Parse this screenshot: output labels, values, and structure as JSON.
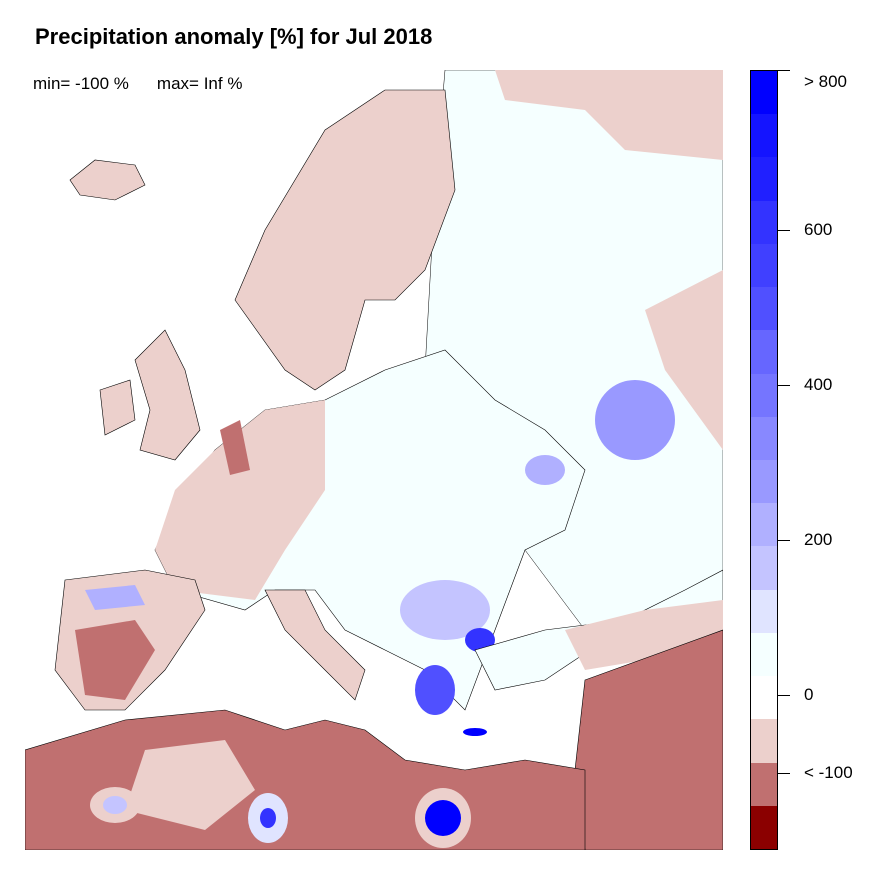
{
  "title": "Precipitation anomaly [%] for Jul 2018",
  "stats": {
    "min": "min= -100 %",
    "max": "max= Inf %"
  },
  "legend": {
    "colors": [
      "#0000ff",
      "#1414ff",
      "#2020ff",
      "#3333ff",
      "#4040ff",
      "#5050ff",
      "#6666ff",
      "#7575ff",
      "#8888ff",
      "#9999ff",
      "#b0b0ff",
      "#c4c4ff",
      "#e0e4ff",
      "#f5ffff",
      "#ffffff",
      "#ecd0cc",
      "#c07070",
      "#8b0000"
    ],
    "labels": [
      "> 800",
      "600",
      "400",
      "200",
      "0",
      "< -100"
    ]
  },
  "colors": {
    "dry": "#ecd0cc",
    "very_dry": "#c07070",
    "normal": "#f5ffff",
    "wet": "#9999ff",
    "very_wet": "#0000ff"
  }
}
